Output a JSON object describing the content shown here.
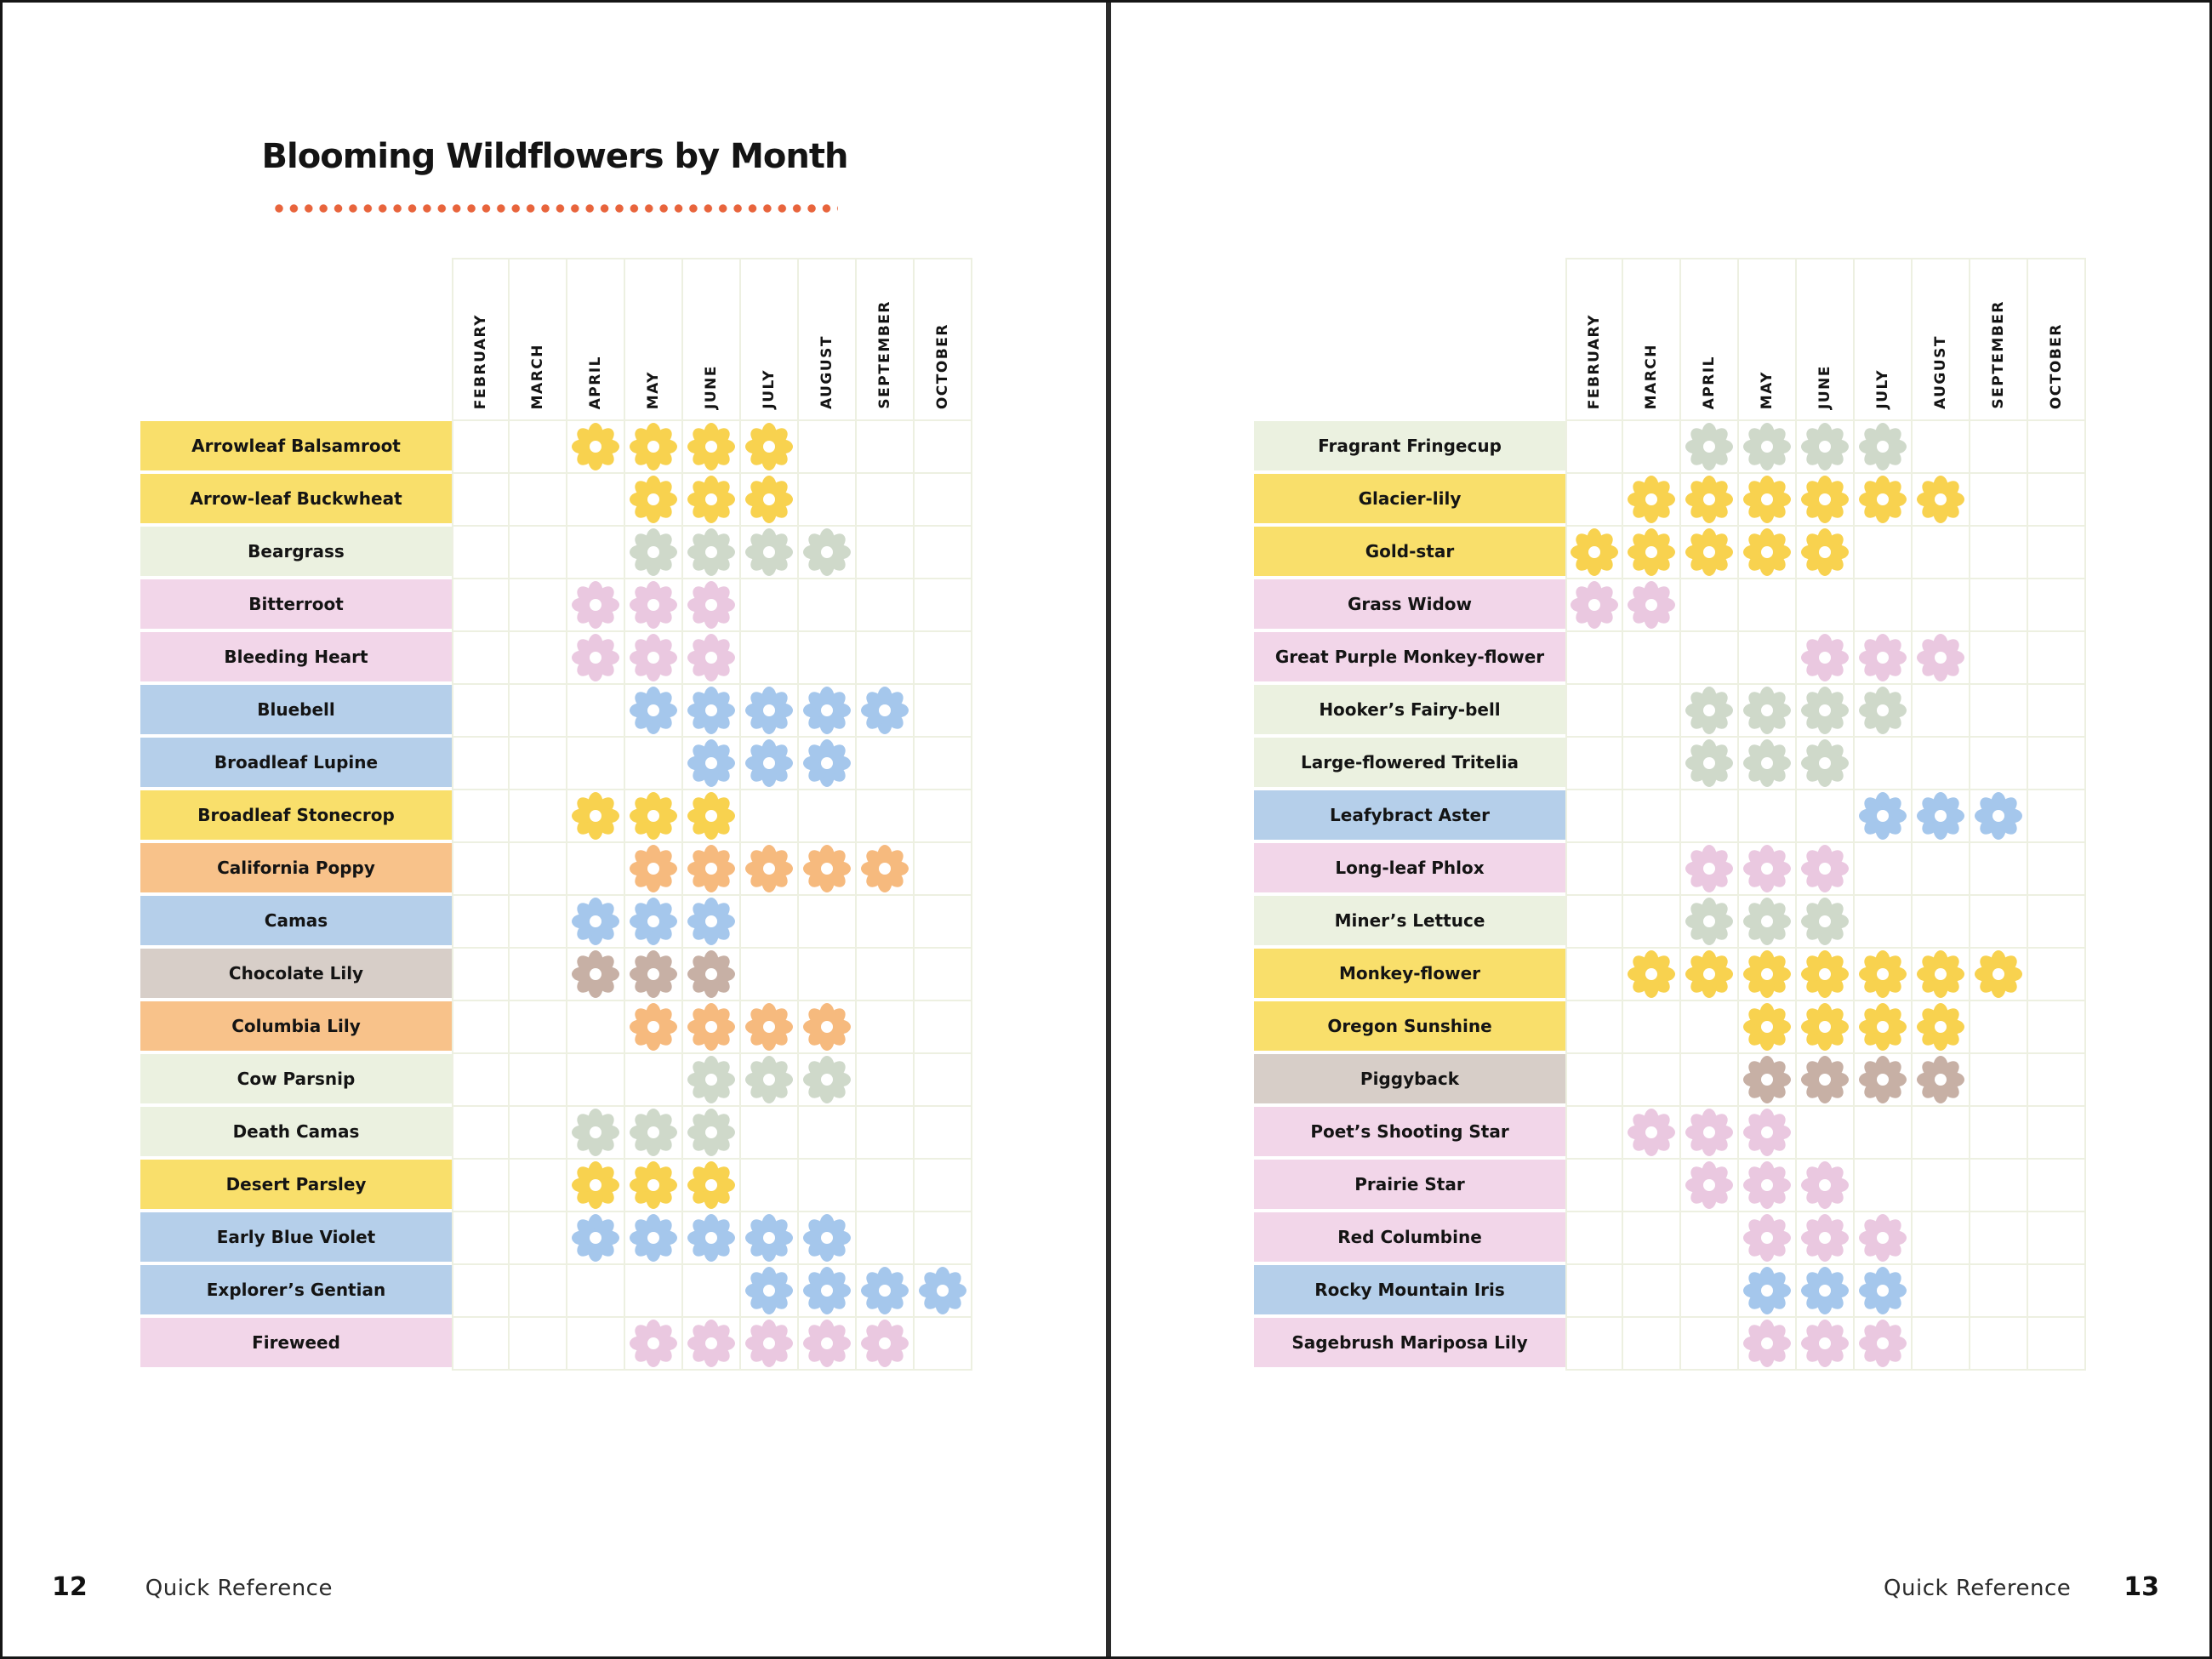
{
  "title": "Blooming Wildflowers by Month",
  "accent_dot_color": "#E8643C",
  "months": [
    "FEBRUARY",
    "MARCH",
    "APRIL",
    "MAY",
    "JUNE",
    "JULY",
    "AUGUST",
    "SEPTEMBER",
    "OCTOBER"
  ],
  "colors": {
    "yellow": {
      "label": "#F9DF6B",
      "flower": "#F8D24F"
    },
    "green": {
      "label": "#EBF1E0",
      "flower": "#CFD9CA"
    },
    "pink": {
      "label": "#F2D6E9",
      "flower": "#EAC8E0"
    },
    "blue": {
      "label": "#B5CFEA",
      "flower": "#A5C7EC"
    },
    "orange": {
      "label": "#F8C28A",
      "flower": "#F6BA7E"
    },
    "tan": {
      "label": "#D7CEC8",
      "flower": "#C7B0A5"
    }
  },
  "pages": [
    {
      "number": "12",
      "footer": "Quick Reference"
    },
    {
      "number": "13",
      "footer": "Quick Reference"
    }
  ],
  "chart_data": [
    {
      "type": "heatmap",
      "title": "Blooming Wildflowers by Month",
      "x_categories": [
        "FEBRUARY",
        "MARCH",
        "APRIL",
        "MAY",
        "JUNE",
        "JULY",
        "AUGUST",
        "SEPTEMBER",
        "OCTOBER"
      ],
      "rows": [
        {
          "name": "Arrowleaf Balsamroot",
          "color": "yellow",
          "bloom_months": [
            "APRIL",
            "MAY",
            "JUNE",
            "JULY"
          ]
        },
        {
          "name": "Arrow-leaf Buckwheat",
          "color": "yellow",
          "bloom_months": [
            "MAY",
            "JUNE",
            "JULY"
          ]
        },
        {
          "name": "Beargrass",
          "color": "green",
          "bloom_months": [
            "MAY",
            "JUNE",
            "JULY",
            "AUGUST"
          ]
        },
        {
          "name": "Bitterroot",
          "color": "pink",
          "bloom_months": [
            "APRIL",
            "MAY",
            "JUNE"
          ]
        },
        {
          "name": "Bleeding Heart",
          "color": "pink",
          "bloom_months": [
            "APRIL",
            "MAY",
            "JUNE"
          ]
        },
        {
          "name": "Bluebell",
          "color": "blue",
          "bloom_months": [
            "MAY",
            "JUNE",
            "JULY",
            "AUGUST",
            "SEPTEMBER"
          ]
        },
        {
          "name": "Broadleaf Lupine",
          "color": "blue",
          "bloom_months": [
            "JUNE",
            "JULY",
            "AUGUST"
          ]
        },
        {
          "name": "Broadleaf Stonecrop",
          "color": "yellow",
          "bloom_months": [
            "APRIL",
            "MAY",
            "JUNE"
          ]
        },
        {
          "name": "California Poppy",
          "color": "orange",
          "bloom_months": [
            "MAY",
            "JUNE",
            "JULY",
            "AUGUST",
            "SEPTEMBER"
          ]
        },
        {
          "name": "Camas",
          "color": "blue",
          "bloom_months": [
            "APRIL",
            "MAY",
            "JUNE"
          ]
        },
        {
          "name": "Chocolate Lily",
          "color": "tan",
          "bloom_months": [
            "APRIL",
            "MAY",
            "JUNE"
          ]
        },
        {
          "name": "Columbia Lily",
          "color": "orange",
          "bloom_months": [
            "MAY",
            "JUNE",
            "JULY",
            "AUGUST"
          ]
        },
        {
          "name": "Cow Parsnip",
          "color": "green",
          "bloom_months": [
            "JUNE",
            "JULY",
            "AUGUST"
          ]
        },
        {
          "name": "Death Camas",
          "color": "green",
          "bloom_months": [
            "APRIL",
            "MAY",
            "JUNE"
          ]
        },
        {
          "name": "Desert Parsley",
          "color": "yellow",
          "bloom_months": [
            "APRIL",
            "MAY",
            "JUNE"
          ]
        },
        {
          "name": "Early Blue Violet",
          "color": "blue",
          "bloom_months": [
            "APRIL",
            "MAY",
            "JUNE",
            "JULY",
            "AUGUST"
          ]
        },
        {
          "name": "Explorer’s Gentian",
          "color": "blue",
          "bloom_months": [
            "JULY",
            "AUGUST",
            "SEPTEMBER",
            "OCTOBER"
          ]
        },
        {
          "name": "Fireweed",
          "color": "pink",
          "bloom_months": [
            "MAY",
            "JUNE",
            "JULY",
            "AUGUST",
            "SEPTEMBER"
          ]
        }
      ]
    },
    {
      "type": "heatmap",
      "title": "Blooming Wildflowers by Month (continued)",
      "x_categories": [
        "FEBRUARY",
        "MARCH",
        "APRIL",
        "MAY",
        "JUNE",
        "JULY",
        "AUGUST",
        "SEPTEMBER",
        "OCTOBER"
      ],
      "rows": [
        {
          "name": "Fragrant Fringecup",
          "color": "green",
          "bloom_months": [
            "APRIL",
            "MAY",
            "JUNE",
            "JULY"
          ]
        },
        {
          "name": "Glacier-lily",
          "color": "yellow",
          "bloom_months": [
            "MARCH",
            "APRIL",
            "MAY",
            "JUNE",
            "JULY",
            "AUGUST"
          ]
        },
        {
          "name": "Gold-star",
          "color": "yellow",
          "bloom_months": [
            "FEBRUARY",
            "MARCH",
            "APRIL",
            "MAY",
            "JUNE"
          ]
        },
        {
          "name": "Grass Widow",
          "color": "pink",
          "bloom_months": [
            "FEBRUARY",
            "MARCH"
          ]
        },
        {
          "name": "Great Purple Monkey-flower",
          "color": "pink",
          "bloom_months": [
            "JUNE",
            "JULY",
            "AUGUST"
          ]
        },
        {
          "name": "Hooker’s Fairy-bell",
          "color": "green",
          "bloom_months": [
            "APRIL",
            "MAY",
            "JUNE",
            "JULY"
          ]
        },
        {
          "name": "Large-flowered Tritelia",
          "color": "green",
          "bloom_months": [
            "APRIL",
            "MAY",
            "JUNE"
          ]
        },
        {
          "name": "Leafybract Aster",
          "color": "blue",
          "bloom_months": [
            "JULY",
            "AUGUST",
            "SEPTEMBER"
          ]
        },
        {
          "name": "Long-leaf Phlox",
          "color": "pink",
          "bloom_months": [
            "APRIL",
            "MAY",
            "JUNE"
          ]
        },
        {
          "name": "Miner’s Lettuce",
          "color": "green",
          "bloom_months": [
            "APRIL",
            "MAY",
            "JUNE"
          ]
        },
        {
          "name": "Monkey-flower",
          "color": "yellow",
          "bloom_months": [
            "MARCH",
            "APRIL",
            "MAY",
            "JUNE",
            "JULY",
            "AUGUST",
            "SEPTEMBER"
          ]
        },
        {
          "name": "Oregon Sunshine",
          "color": "yellow",
          "bloom_months": [
            "MAY",
            "JUNE",
            "JULY",
            "AUGUST"
          ]
        },
        {
          "name": "Piggyback",
          "color": "tan",
          "bloom_months": [
            "MAY",
            "JUNE",
            "JULY",
            "AUGUST"
          ]
        },
        {
          "name": "Poet’s Shooting Star",
          "color": "pink",
          "bloom_months": [
            "MARCH",
            "APRIL",
            "MAY"
          ]
        },
        {
          "name": "Prairie Star",
          "color": "pink",
          "bloom_months": [
            "APRIL",
            "MAY",
            "JUNE"
          ]
        },
        {
          "name": "Red Columbine",
          "color": "pink",
          "bloom_months": [
            "MAY",
            "JUNE",
            "JULY"
          ]
        },
        {
          "name": "Rocky Mountain Iris",
          "color": "blue",
          "bloom_months": [
            "MAY",
            "JUNE",
            "JULY"
          ]
        },
        {
          "name": "Sagebrush Mariposa Lily",
          "color": "pink",
          "bloom_months": [
            "MAY",
            "JUNE",
            "JULY"
          ]
        }
      ]
    }
  ]
}
